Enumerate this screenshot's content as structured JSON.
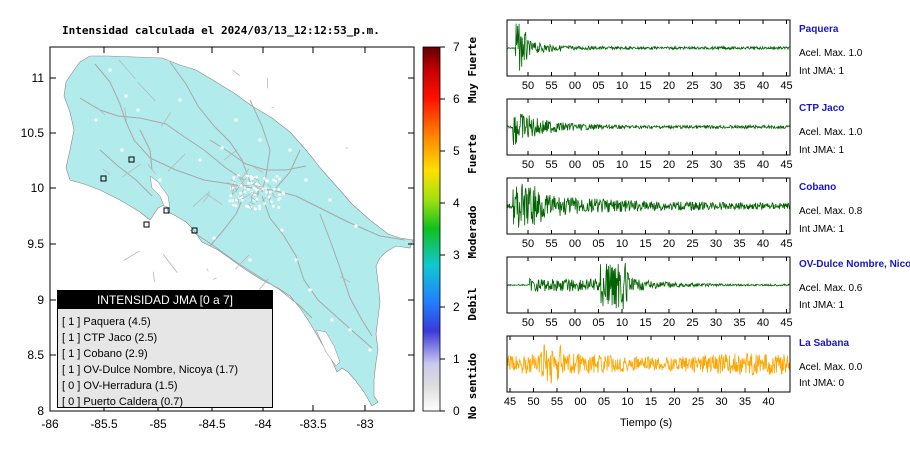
{
  "title": "Intensidad calculada el 2024/03/13_12:12:53_p.m.",
  "map": {
    "y_ticks": [
      "11",
      "10.5",
      "10",
      "9.5",
      "9",
      "8.5",
      "8"
    ],
    "x_ticks": [
      "-86",
      "-85.5",
      "-85",
      "-84.5",
      "-84",
      "-83.5",
      "-83"
    ],
    "land_color": "#b2ebec",
    "road_color": "#a8a8a8"
  },
  "colorbar": {
    "ticks": [
      "0",
      "1",
      "2",
      "3",
      "4",
      "5",
      "6",
      "7"
    ],
    "labels": [
      "No sentido",
      "Debil",
      "Moderado",
      "Fuerte",
      "Muy Fuerte"
    ]
  },
  "legend": {
    "header": "INTENSIDAD JMA [0 a 7]",
    "items": [
      "[ 1 ]  Paquera (4.5)",
      "[ 1 ]  CTP Jaco (2.5)",
      "[ 1 ]  Cobano (2.9)",
      "[ 1 ]  OV-Dulce Nombre, Nicoya (1.7)",
      "[ 0 ]  OV-Herradura (1.5)",
      "[ 0 ]  Puerto Caldera (0.7)"
    ]
  },
  "waveforms": {
    "ticks": [
      "50",
      "55",
      "00",
      "05",
      "10",
      "15",
      "20",
      "25",
      "30",
      "35",
      "40",
      "45"
    ],
    "last_ticks": [
      "45",
      "50",
      "55",
      "00",
      "05",
      "10",
      "15",
      "20",
      "25",
      "30",
      "35",
      "40"
    ],
    "xlabel": "Tiempo (s)",
    "stations": [
      {
        "name": "Paquera",
        "accel": "Acel. Max. 1.0",
        "jma": "Int JMA: 1",
        "color": "#006400"
      },
      {
        "name": "CTP Jaco",
        "accel": "Acel. Max. 1.0",
        "jma": "Int JMA: 1",
        "color": "#006400"
      },
      {
        "name": "Cobano",
        "accel": "Acel. Max. 0.8",
        "jma": "Int JMA: 1",
        "color": "#006400"
      },
      {
        "name": "OV-Dulce Nombre, Nicoya",
        "accel": "Acel. Max. 0.6",
        "jma": "Int JMA: 1",
        "color": "#006400"
      },
      {
        "name": "La Sabana",
        "accel": "Acel. Max. 0.0",
        "jma": "Int JMA: 0",
        "color": "#ffa500"
      }
    ]
  }
}
